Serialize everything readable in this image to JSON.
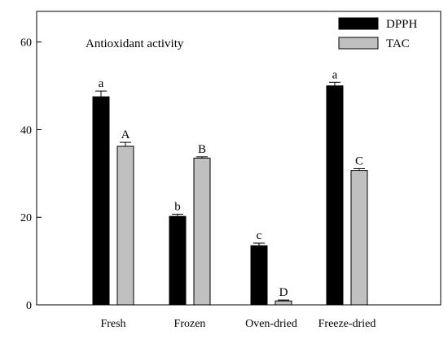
{
  "chart_data": {
    "type": "bar",
    "title": "",
    "annotation": "Antioxidant activity",
    "xlabel": "",
    "ylabel": "",
    "ylim": [
      0,
      67
    ],
    "yticks": [
      0,
      20,
      40,
      60
    ],
    "grid": false,
    "legend_position": "top-right",
    "categories": [
      "Fresh",
      "Frozen",
      "Oven-dried",
      "Freeze-dried"
    ],
    "series": [
      {
        "name": "DPPH",
        "color": "#000000",
        "values": [
          47.5,
          20.2,
          13.5,
          50.0
        ],
        "errors": [
          1.3,
          0.5,
          0.6,
          0.8
        ],
        "letters": [
          "a",
          "b",
          "c",
          "a"
        ]
      },
      {
        "name": "TAC",
        "color": "#c0c0c0",
        "values": [
          36.2,
          33.5,
          0.9,
          30.7
        ],
        "errors": [
          0.9,
          0.3,
          0.2,
          0.4
        ],
        "letters": [
          "A",
          "B",
          "D",
          "C"
        ]
      }
    ]
  }
}
